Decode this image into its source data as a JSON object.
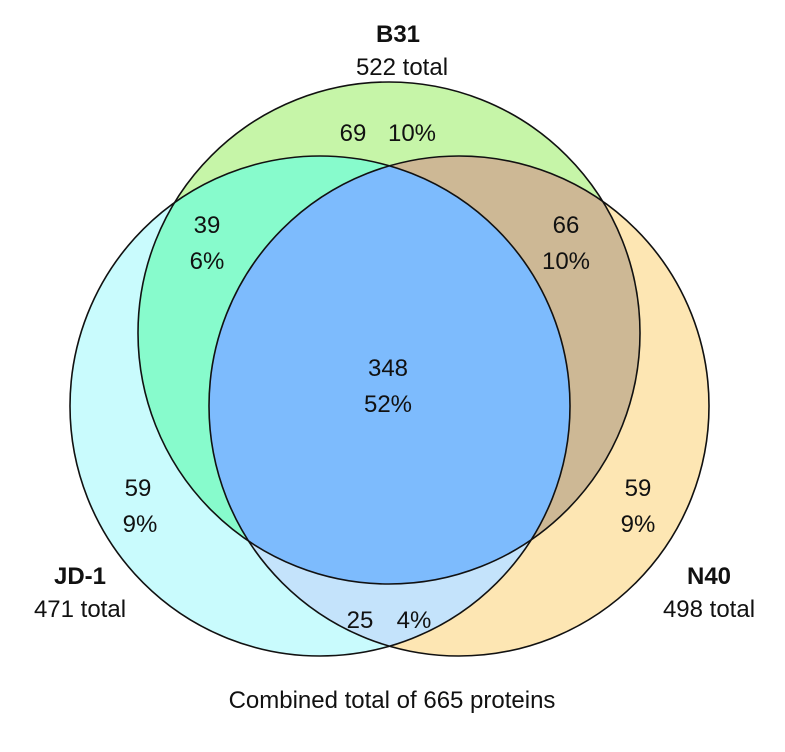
{
  "sets": [
    {
      "id": "b31",
      "name": "B31",
      "total_text": "522 total"
    },
    {
      "id": "jd1",
      "name": "JD-1",
      "total_text": "471 total"
    },
    {
      "id": "n40",
      "name": "N40",
      "total_text": "498 total"
    }
  ],
  "regions": {
    "b31_only": {
      "count": "69",
      "percent": "10%"
    },
    "b31_jd1": {
      "count": "39",
      "percent": "6%"
    },
    "b31_n40": {
      "count": "66",
      "percent": "10%"
    },
    "all_three": {
      "count": "348",
      "percent": "52%"
    },
    "jd1_only": {
      "count": "59",
      "percent": "9%"
    },
    "n40_only": {
      "count": "59",
      "percent": "9%"
    },
    "jd1_n40": {
      "count": "25",
      "percent": "4%"
    }
  },
  "footer": "Combined total of 665 proteins",
  "colors": {
    "b31": "#c6f5a8",
    "jd1": "#c9fbfd",
    "n40": "#fde6b3",
    "b31_jd1": "#87fbcc",
    "b31_n40": "#cdb895",
    "jd1_n40": "#c4e3fb",
    "all": "#7dbbfd",
    "stroke": "#111111"
  }
}
